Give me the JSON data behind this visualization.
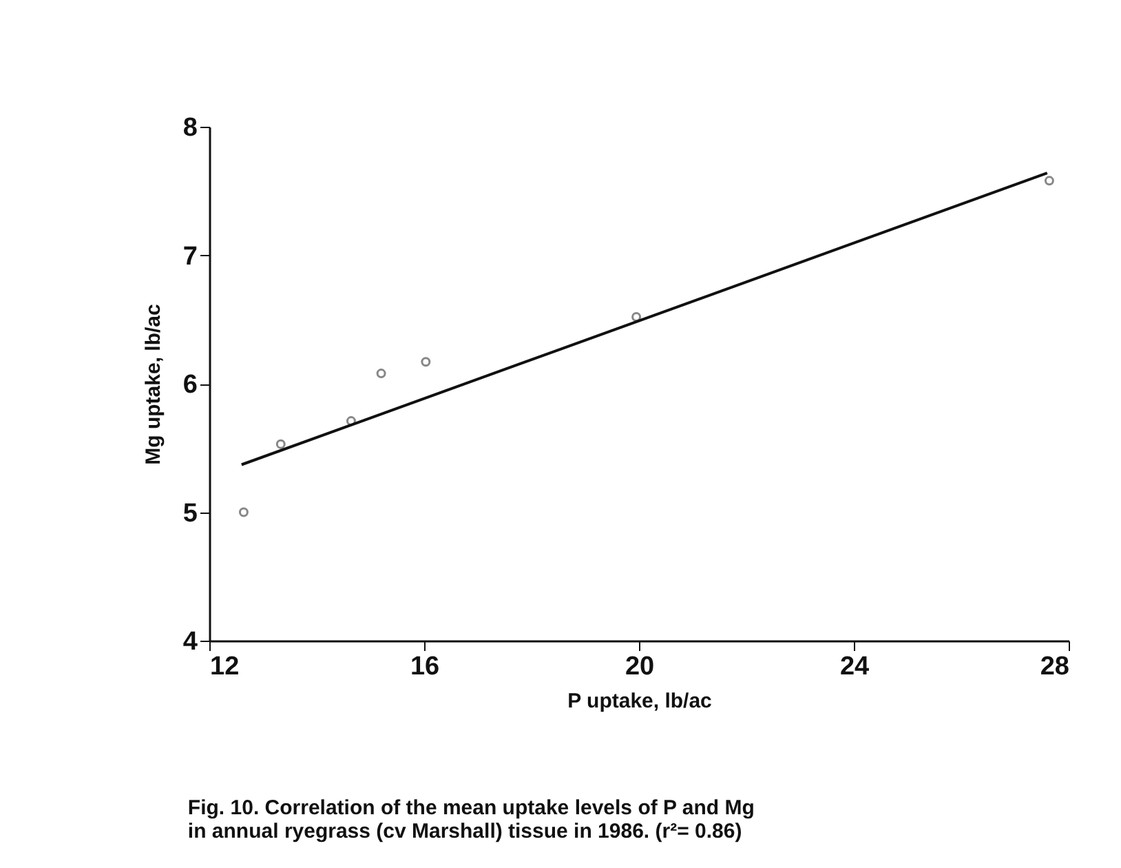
{
  "chart_data": {
    "type": "scatter",
    "xlabel": "P uptake, lb/ac",
    "ylabel": "Mg uptake, lb/ac",
    "annotations": [
      "Fig. 10.  Correlation of the mean uptake levels of P and Mg",
      "in annual ryegrass (cv Marshall) tissue in 1986.  (r²= 0.86)"
    ],
    "xlim": [
      12,
      28
    ],
    "xticks": [
      12,
      16,
      20,
      24,
      28
    ],
    "ylim": [
      4,
      8
    ],
    "yticks": [
      4,
      5,
      6,
      7,
      8
    ],
    "grid": false,
    "series": [
      {
        "marker": "circle",
        "color": "#555555",
        "x": [
          12.64,
          13.33,
          14.64,
          15.2,
          16.03,
          19.95,
          27.64
        ],
        "values": [
          5.0,
          5.53,
          5.71,
          6.08,
          6.17,
          6.52,
          7.58
        ]
      },
      {
        "type": "line",
        "color": "#111111",
        "x": [
          12.6,
          27.6
        ],
        "values": [
          5.37,
          7.64
        ],
        "line_style": "solid"
      }
    ]
  }
}
